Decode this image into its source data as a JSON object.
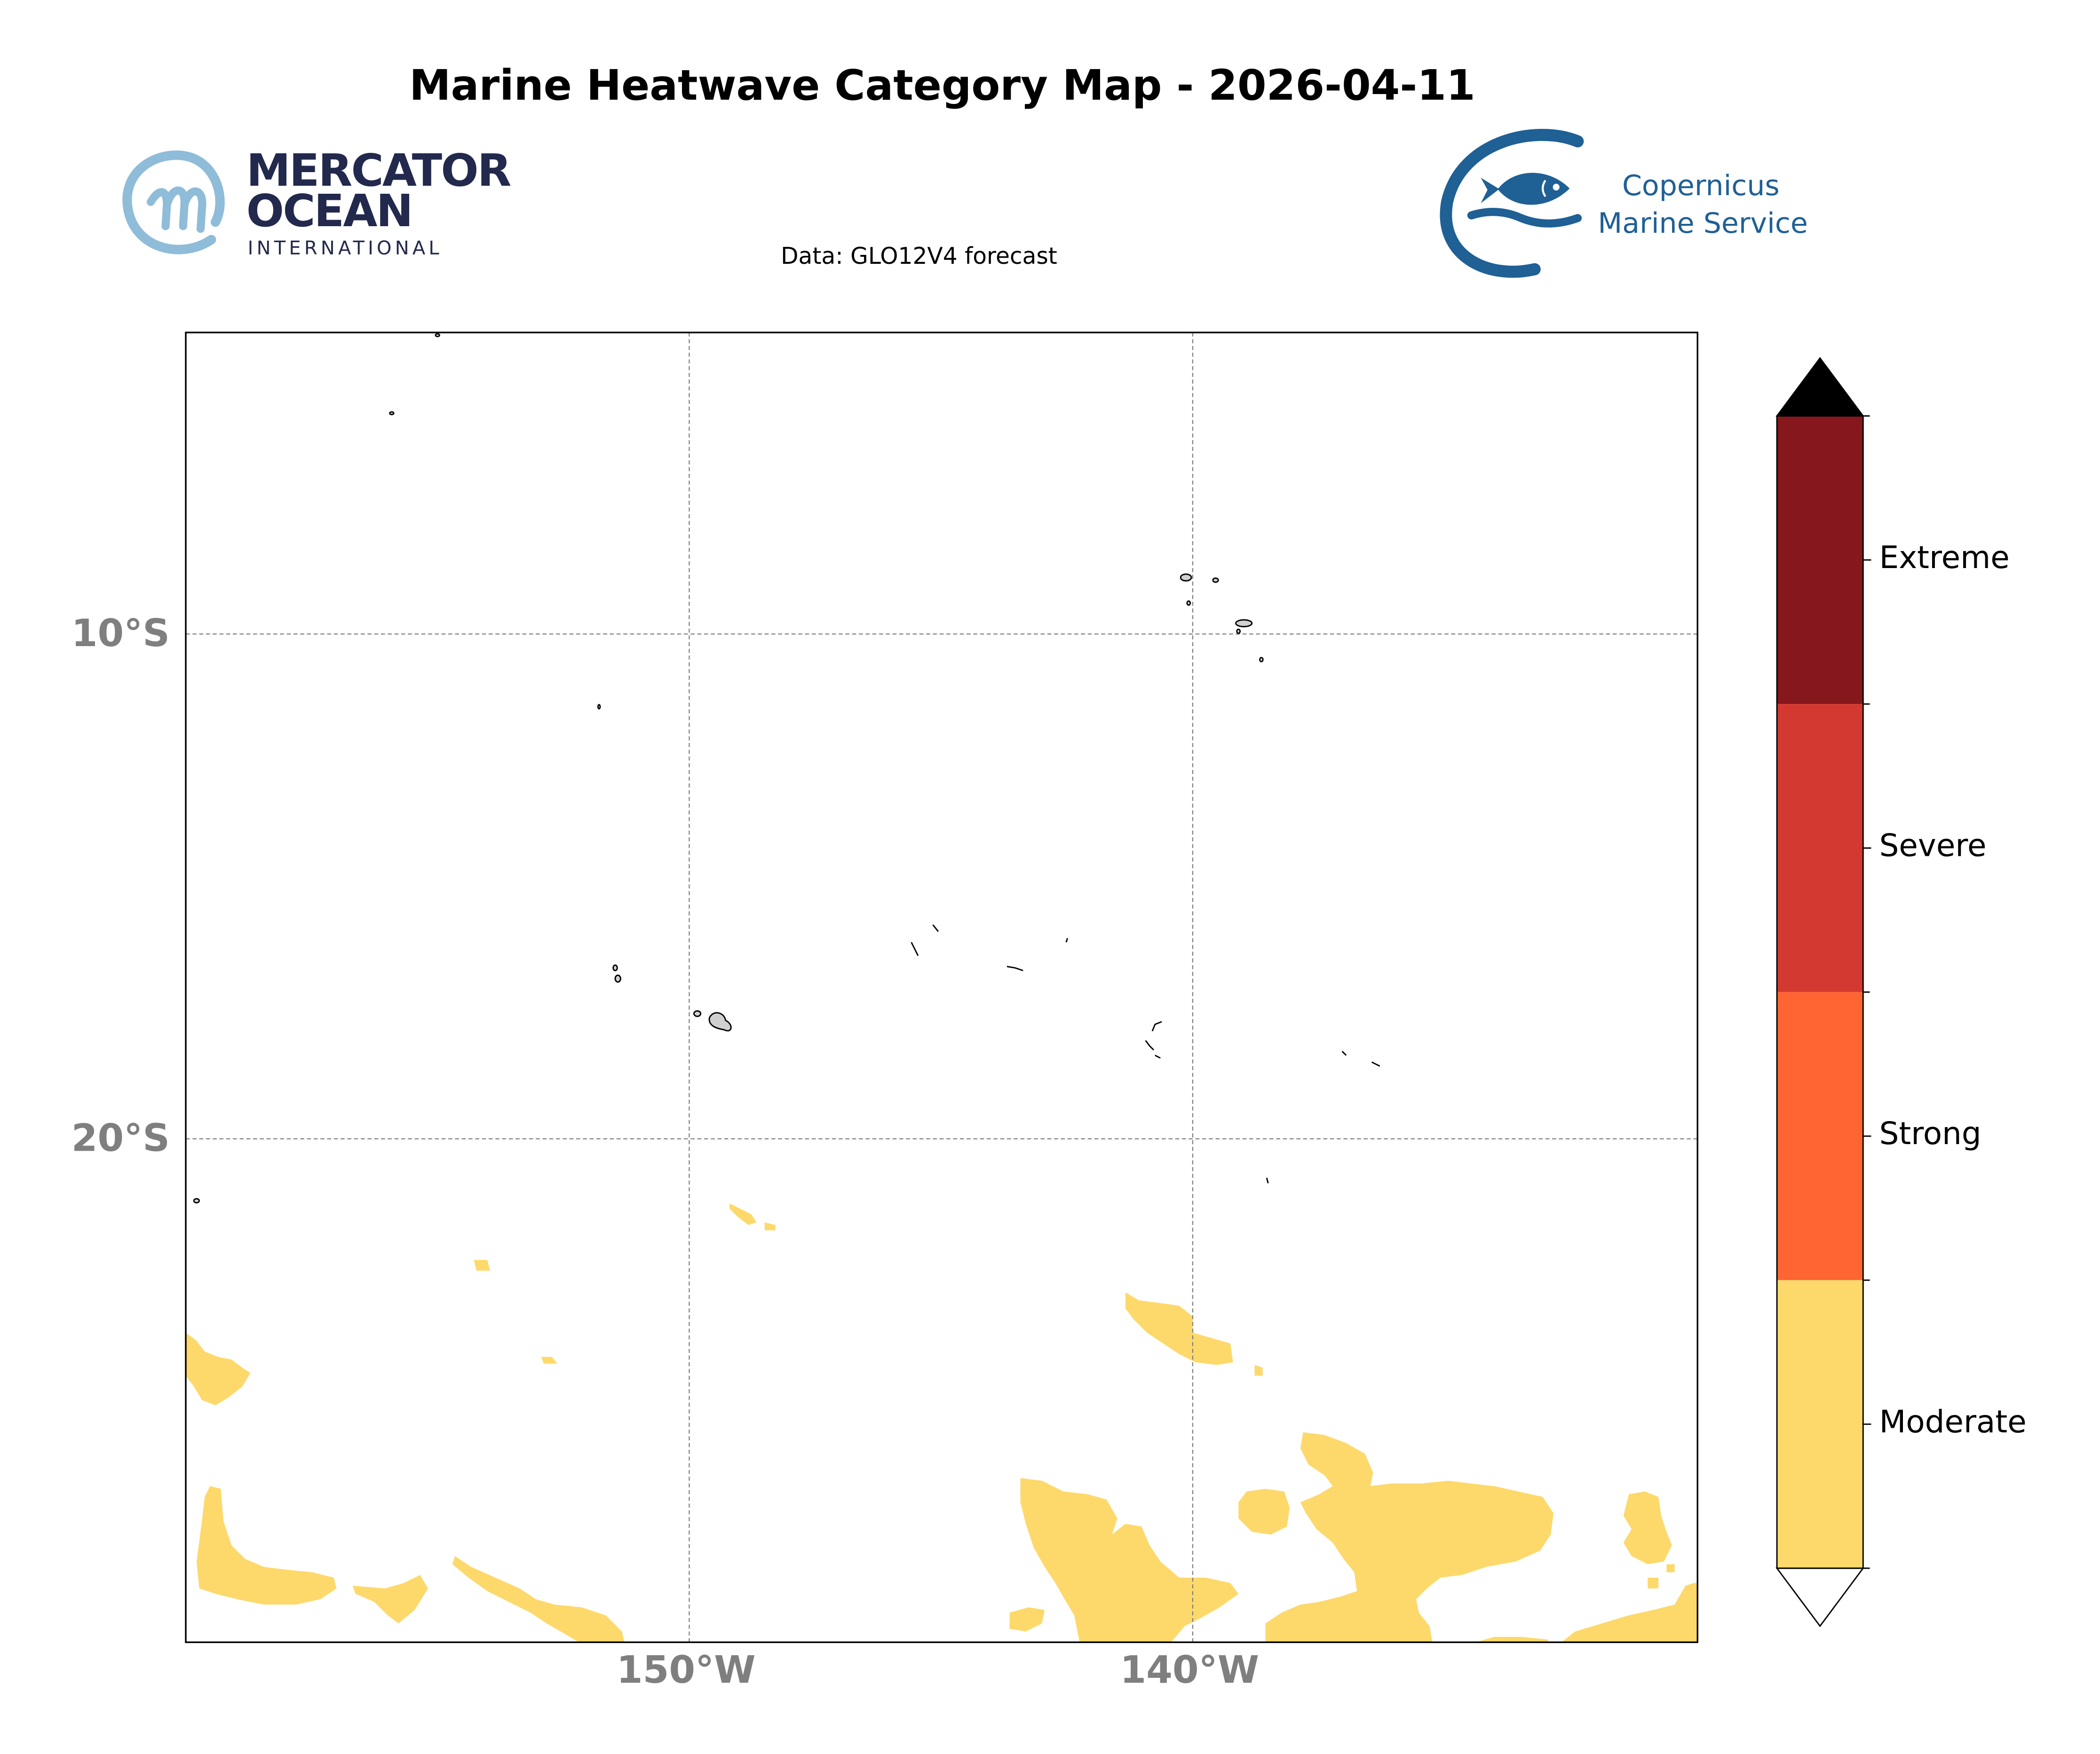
{
  "title": "Marine Heatwave Category Map - 2026-04-11",
  "subtitle": "Data: GLO12V4 forecast",
  "logos": {
    "mercator": {
      "line1": "MERCATOR",
      "line2": "OCEAN",
      "line3": "INTERNATIONAL"
    },
    "copernicus": {
      "line1": "Copernicus",
      "line2": "Marine Service"
    }
  },
  "map": {
    "x_ticks": [
      "150°W",
      "140°W"
    ],
    "y_ticks": [
      "10°S",
      "20°S"
    ]
  },
  "legend": {
    "categories": [
      {
        "label": "Moderate",
        "color": "#fdd96b"
      },
      {
        "label": "Strong",
        "color": "#fe6532"
      },
      {
        "label": "Severe",
        "color": "#d33930"
      },
      {
        "label": "Extreme",
        "color": "#86171c"
      }
    ],
    "over_color": "#000000",
    "under_color": "#ffffff"
  },
  "colors": {
    "mercator_navy": "#22294d",
    "mercator_light": "#8fbcd8",
    "copernicus_blue": "#1f6095",
    "axis_tick_gray": "#7f7f7f",
    "moderate": "#fdd96b"
  }
}
